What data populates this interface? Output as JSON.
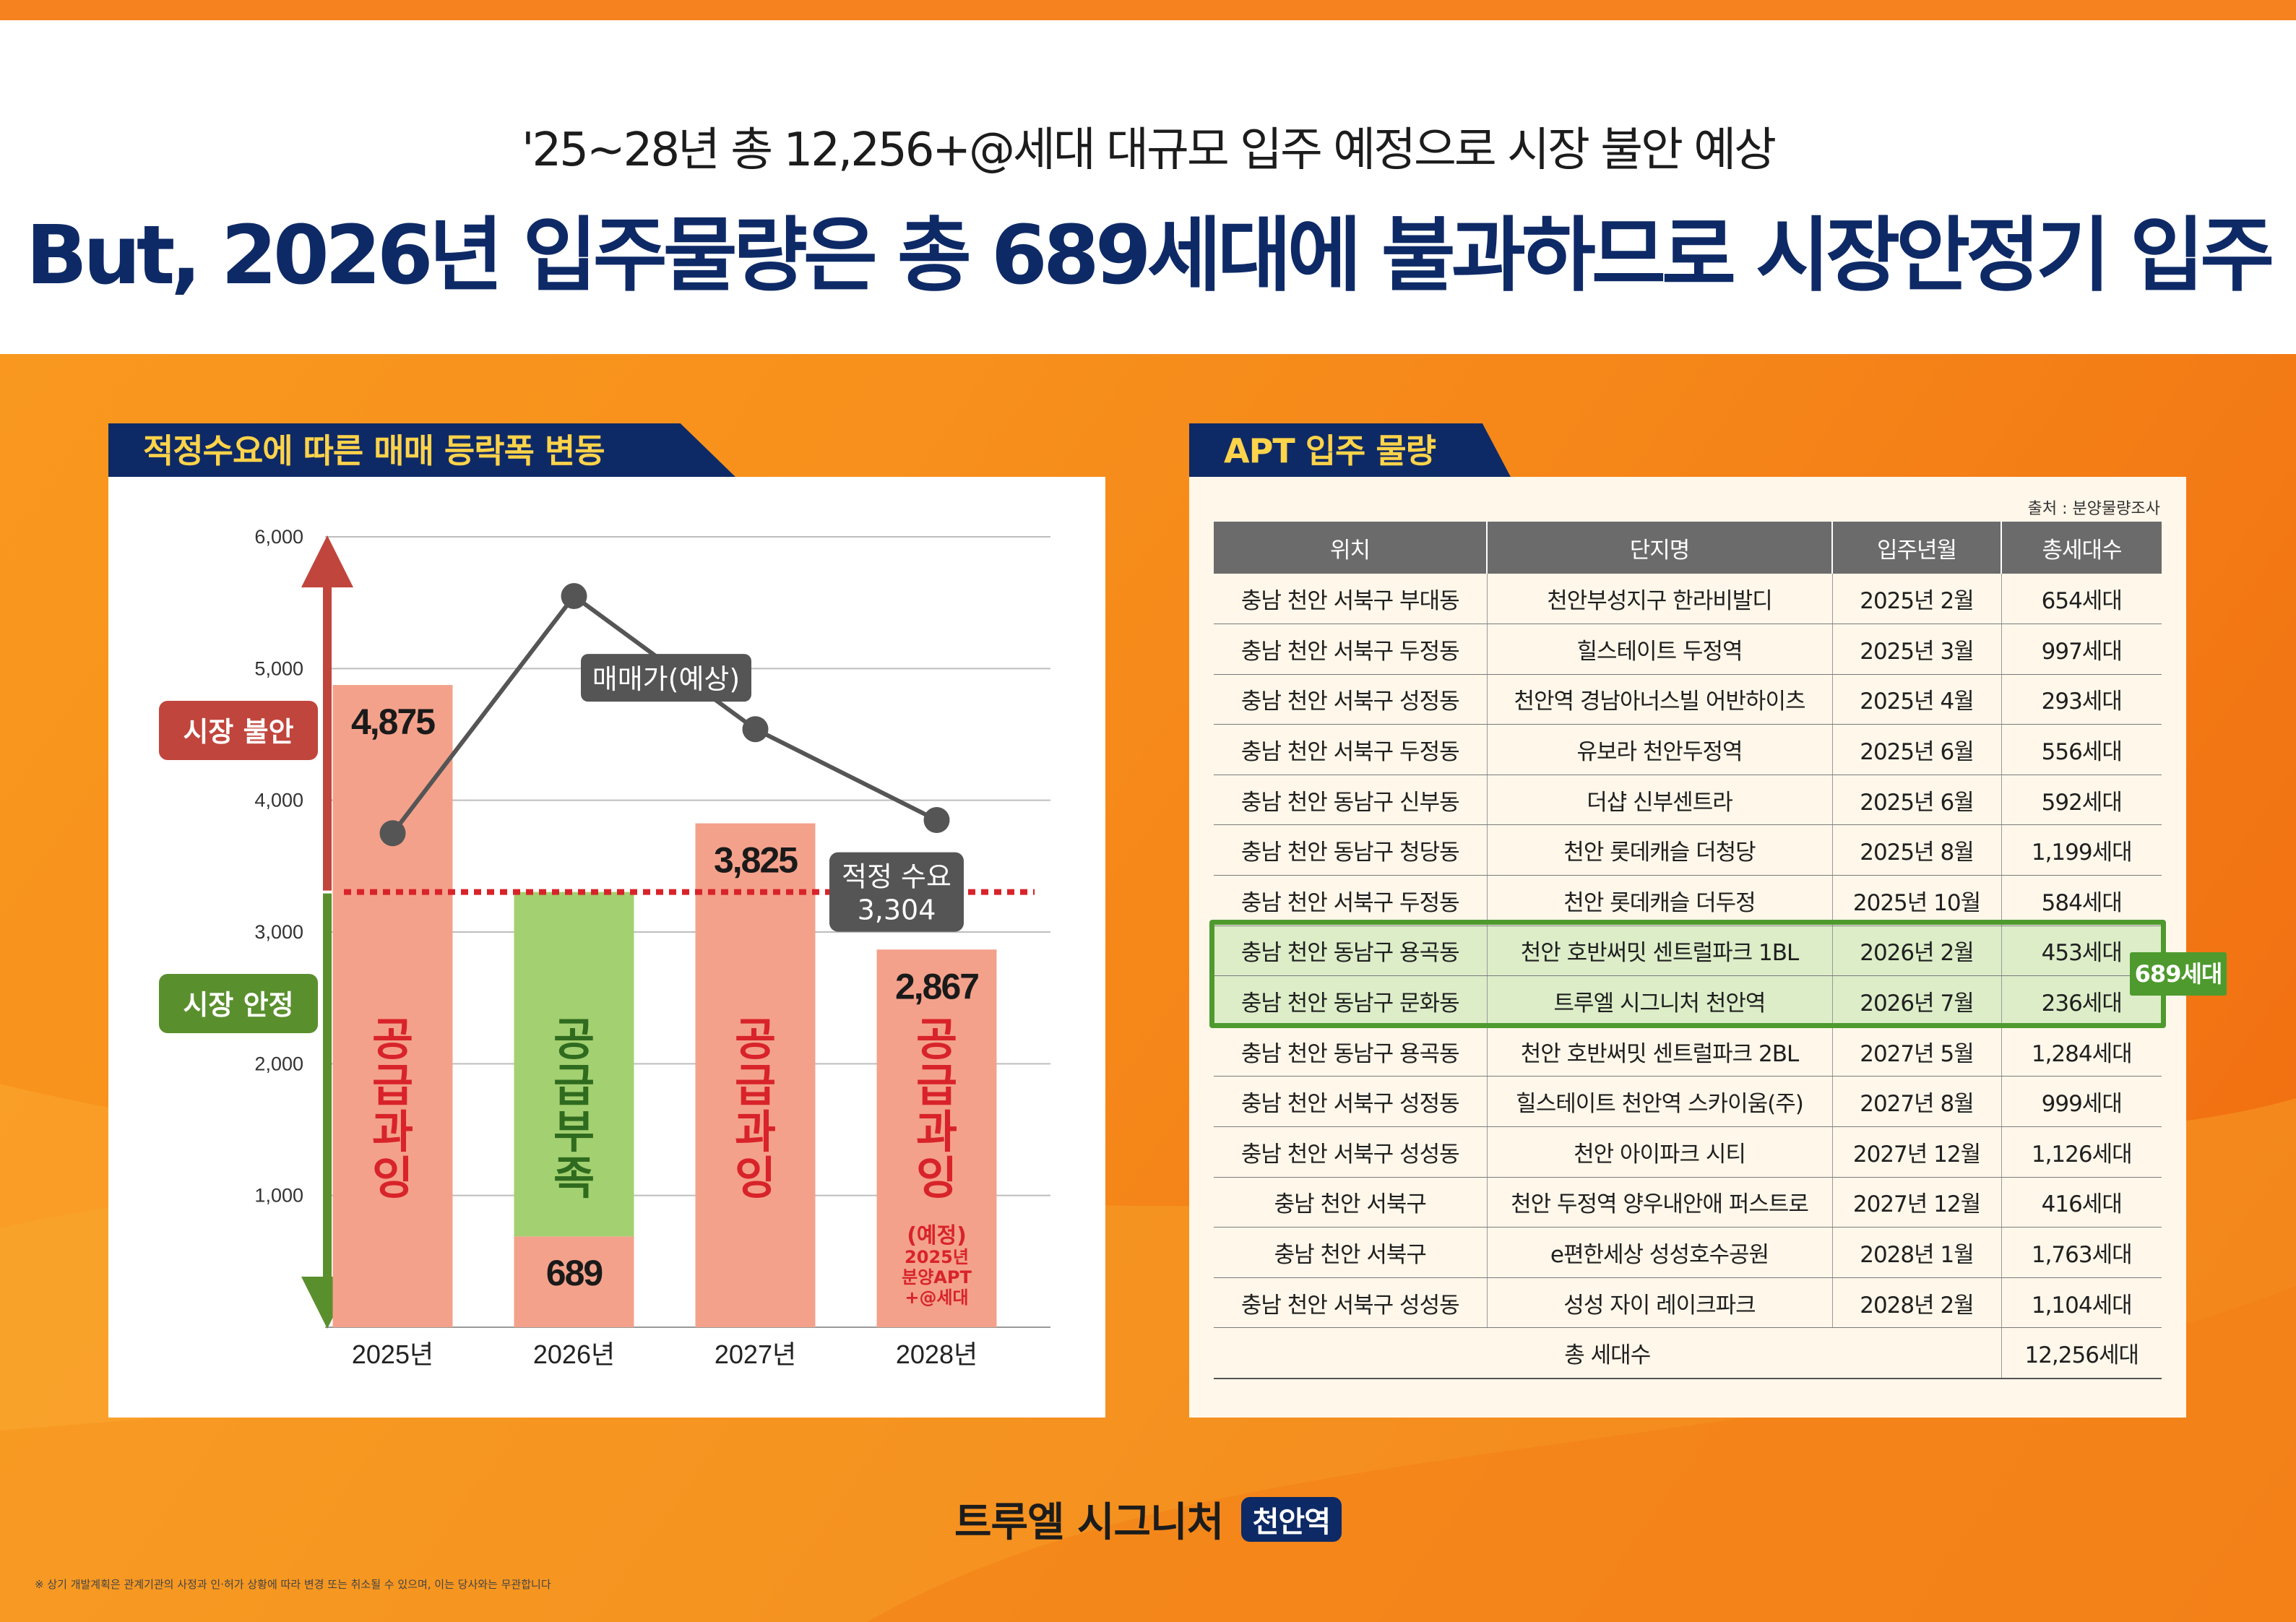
{
  "header": {
    "subtitle": "'25~28년 총 12,256+@세대 대규모 입주 예정으로 시장 불안 예상",
    "title": "But, 2026년 입주물량은 총 689세대에 불과하므로 시장안정기 입주"
  },
  "left_panel": {
    "tab_label": "적정수요에 따른 매매 등락폭 변동"
  },
  "right_panel": {
    "tab_label": "APT 입주 물량",
    "source": "출처 : 분양물량조사",
    "columns": [
      "위치",
      "단지명",
      "입주년월",
      "총세대수"
    ],
    "rows": [
      [
        "충남 천안 서북구 부대동",
        "천안부성지구 한라비발디",
        "2025년 2월",
        "654세대"
      ],
      [
        "충남 천안 서북구 두정동",
        "힐스테이트 두정역",
        "2025년 3월",
        "997세대"
      ],
      [
        "충남 천안 서북구 성정동",
        "천안역 경남아너스빌 어반하이츠",
        "2025년 4월",
        "293세대"
      ],
      [
        "충남 천안 서북구 두정동",
        "유보라 천안두정역",
        "2025년 6월",
        "556세대"
      ],
      [
        "충남 천안 동남구 신부동",
        "더샵 신부센트라",
        "2025년 6월",
        "592세대"
      ],
      [
        "충남 천안 동남구 청당동",
        "천안 롯데캐슬 더청당",
        "2025년 8월",
        "1,199세대"
      ],
      [
        "충남 천안 서북구 두정동",
        "천안 롯데캐슬 더두정",
        "2025년 10월",
        "584세대"
      ],
      [
        "충남 천안 동남구 용곡동",
        "천안 호반써밋 센트럴파크 1BL",
        "2026년 2월",
        "453세대"
      ],
      [
        "충남 천안 동남구 문화동",
        "트루엘 시그니처 천안역",
        "2026년 7월",
        "236세대"
      ],
      [
        "충남 천안 동남구 용곡동",
        "천안 호반써밋 센트럴파크 2BL",
        "2027년 5월",
        "1,284세대"
      ],
      [
        "충남 천안 서북구 성정동",
        "힐스테이트 천안역 스카이움(주)",
        "2027년 8월",
        "999세대"
      ],
      [
        "충남 천안 서북구 성성동",
        "천안 아이파크 시티",
        "2027년 12월",
        "1,126세대"
      ],
      [
        "충남 천안 서북구",
        "천안 두정역 양우내안애 퍼스트로",
        "2027년 12월",
        "416세대"
      ],
      [
        "충남 천안 서북구",
        "e편한세상 성성호수공원",
        "2028년 1월",
        "1,763세대"
      ],
      [
        "충남 천안 서북구 성성동",
        "성성 자이 레이크파크",
        "2028년 2월",
        "1,104세대"
      ]
    ],
    "total_label": "총 세대수",
    "total_value": "12,256세대",
    "highlight_badge": "689세대"
  },
  "chart_data": {
    "type": "bar",
    "title": "적정수요에 따른 매매 등락폭 변동",
    "categories": [
      "2025년",
      "2026년",
      "2027년",
      "2028년"
    ],
    "values": [
      4875,
      689,
      3825,
      2867
    ],
    "value_labels": [
      "4,875",
      "689",
      "3,825",
      "2,867"
    ],
    "bar_colors": [
      "#f4a18b",
      "#f4a18b",
      "#f4a18b",
      "#f4a18b"
    ],
    "bar_labels": [
      "공급과잉",
      "공급부족",
      "공급과잉",
      "공급과잉"
    ],
    "bar_label_colors": [
      "#d8232a",
      "#2f6b1f",
      "#d8232a",
      "#d8232a"
    ],
    "shortage_fill": {
      "category": "2026년",
      "from": 689,
      "to": 3304,
      "color": "#a3d070"
    },
    "note_2028": [
      "(예정)",
      "2025년",
      "분양APT",
      "+@세대"
    ],
    "ylim": [
      0,
      6000
    ],
    "yticks": [
      1000,
      2000,
      3000,
      4000,
      5000,
      6000
    ],
    "ytick_labels": [
      "1,000",
      "2,000",
      "3,000",
      "4,000",
      "5,000",
      "6,000"
    ],
    "line_series": {
      "name": "매매가(예상)",
      "values": [
        3750,
        5550,
        4540,
        3850
      ],
      "color": "#555555"
    },
    "reference_line": {
      "value": 3304,
      "label": "적정 수요",
      "value_label": "3,304",
      "color": "#d8232a"
    },
    "zones": [
      {
        "label": "시장 불안",
        "from": 3304,
        "to": 6000,
        "color": "#c0453c"
      },
      {
        "label": "시장 안정",
        "from": 0,
        "to": 3304,
        "color": "#5a8f2e"
      }
    ]
  },
  "footer": {
    "brand": "트루엘 시그니처",
    "brand_sub": "천안역",
    "disclaimer": "※ 상기 개발계획은 관계기관의 사정과 인·허가 상황에 따라 변경 또는 취소될 수 있으며, 이는 당사와는 무관합니다"
  }
}
